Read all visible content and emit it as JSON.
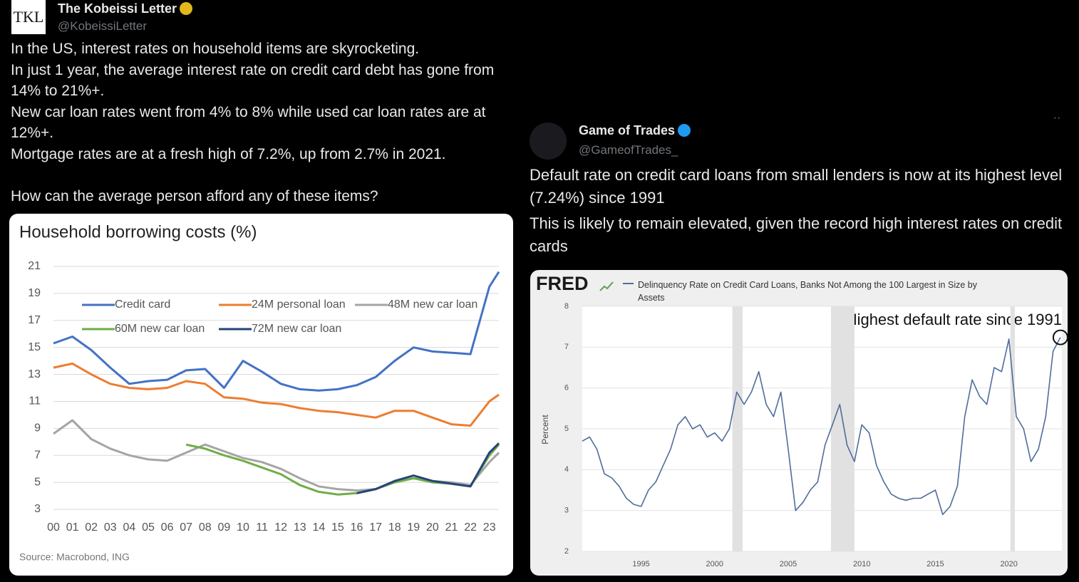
{
  "tweets": [
    {
      "name": "The Kobeissi Letter",
      "handle": "@KobeissiLetter",
      "avatar": "TKL",
      "paragraphs": [
        "In the US, interest rates on household items are skyrocketing.",
        "In just 1 year, the average interest rate on credit card debt has gone from 14% to 21%+.",
        "New car loan rates went from 4% to 8% while used car loan rates are at 12%+.",
        "Mortgage rates are at a fresh high of 7.2%, up from 2.7% in 2021.",
        "How can the average person afford any of these items?"
      ]
    },
    {
      "name": "Game of Trades",
      "handle": "@GameofTrades_",
      "paragraphs": [
        "Default rate on credit card loans from small lenders is now at its highest level (7.24%) since 1991",
        "This is likely to remain elevated, given the record high interest rates on credit cards"
      ]
    }
  ],
  "chart_data": [
    {
      "type": "line",
      "title": "Household borrowing costs (%)",
      "source": "Source: Macrobond, ING",
      "x": [
        0,
        1,
        2,
        3,
        4,
        5,
        6,
        7,
        8,
        9,
        10,
        11,
        12,
        13,
        14,
        15,
        16,
        17,
        18,
        19,
        20,
        21,
        22,
        23,
        23.5
      ],
      "xlim": [
        0,
        23.5
      ],
      "xticks": [
        {
          "value": 0,
          "label": "00"
        },
        {
          "value": 1,
          "label": "01"
        },
        {
          "value": 2,
          "label": "02"
        },
        {
          "value": 3,
          "label": "03"
        },
        {
          "value": 4,
          "label": "04"
        },
        {
          "value": 5,
          "label": "05"
        },
        {
          "value": 6,
          "label": "06"
        },
        {
          "value": 7,
          "label": "07"
        },
        {
          "value": 8,
          "label": "08"
        },
        {
          "value": 9,
          "label": "09"
        },
        {
          "value": 10,
          "label": "10"
        },
        {
          "value": 11,
          "label": "11"
        },
        {
          "value": 12,
          "label": "12"
        },
        {
          "value": 13,
          "label": "13"
        },
        {
          "value": 14,
          "label": "14"
        },
        {
          "value": 15,
          "label": "15"
        },
        {
          "value": 16,
          "label": "16"
        },
        {
          "value": 17,
          "label": "17"
        },
        {
          "value": 18,
          "label": "18"
        },
        {
          "value": 19,
          "label": "19"
        },
        {
          "value": 20,
          "label": "20"
        },
        {
          "value": 21,
          "label": "21"
        },
        {
          "value": 22,
          "label": "22"
        },
        {
          "value": 23,
          "label": "23"
        }
      ],
      "ylim": [
        3,
        21
      ],
      "yticks": [
        3,
        5,
        7,
        9,
        11,
        13,
        15,
        17,
        19,
        21
      ],
      "grid": true,
      "series": [
        {
          "name": "Credit card",
          "color": "#4472c4",
          "values": [
            15.3,
            15.8,
            14.8,
            13.5,
            12.3,
            12.5,
            12.6,
            13.3,
            13.4,
            12.0,
            14.0,
            13.2,
            12.3,
            11.9,
            11.8,
            11.9,
            12.2,
            12.8,
            14.0,
            15.0,
            14.7,
            14.6,
            14.5,
            19.5,
            20.6
          ]
        },
        {
          "name": "24M personal loan",
          "color": "#ed7d31",
          "values": [
            13.5,
            13.8,
            13.0,
            12.3,
            12.0,
            11.9,
            12.0,
            12.5,
            12.3,
            11.3,
            11.2,
            10.9,
            10.8,
            10.5,
            10.3,
            10.2,
            10.0,
            9.8,
            10.3,
            10.3,
            9.8,
            9.3,
            9.2,
            11.0,
            11.5
          ]
        },
        {
          "name": "48M new car loan",
          "color": "#a5a5a5",
          "values": [
            8.6,
            9.6,
            8.2,
            7.5,
            7.0,
            6.7,
            6.6,
            7.2,
            7.8,
            7.3,
            6.8,
            6.5,
            6.0,
            5.3,
            4.7,
            4.5,
            4.4,
            4.5,
            5.0,
            5.3,
            5.1,
            5.0,
            4.8,
            6.5,
            7.2
          ]
        },
        {
          "name": "60M new car loan",
          "color": "#70ad47",
          "values": [
            null,
            null,
            null,
            null,
            null,
            null,
            null,
            7.8,
            7.5,
            7.0,
            6.6,
            6.1,
            5.6,
            4.8,
            4.3,
            4.1,
            4.2,
            4.5,
            5.0,
            5.3,
            5.0,
            4.9,
            4.7,
            7.0,
            7.8
          ]
        },
        {
          "name": "72M new car loan",
          "color": "#264478",
          "values": [
            null,
            null,
            null,
            null,
            null,
            null,
            null,
            null,
            null,
            null,
            null,
            null,
            null,
            null,
            null,
            null,
            4.2,
            4.5,
            5.1,
            5.5,
            5.1,
            4.9,
            4.7,
            7.2,
            7.9
          ]
        }
      ]
    },
    {
      "type": "line",
      "title": "FRED",
      "y_label": "Percent",
      "annotation": "Highest default rate since 1991",
      "x": [
        1991,
        1991.5,
        1992,
        1992.5,
        1993,
        1993.5,
        1994,
        1994.5,
        1995,
        1995.5,
        1996,
        1996.5,
        1997,
        1997.5,
        1998,
        1998.5,
        1999,
        1999.5,
        2000,
        2000.5,
        2001,
        2001.5,
        2002,
        2002.5,
        2003,
        2003.5,
        2004,
        2004.5,
        2005,
        2005.5,
        2006,
        2006.5,
        2007,
        2007.5,
        2008,
        2008.5,
        2009,
        2009.5,
        2010,
        2010.5,
        2011,
        2011.5,
        2012,
        2012.5,
        2013,
        2013.5,
        2014,
        2014.5,
        2015,
        2015.5,
        2016,
        2016.5,
        2017,
        2017.5,
        2018,
        2018.5,
        2019,
        2019.5,
        2020,
        2020.5,
        2021,
        2021.5,
        2022,
        2022.5,
        2023,
        2023.5
      ],
      "xlim": [
        1991,
        2023.6
      ],
      "xticks": [
        1995,
        2000,
        2005,
        2010,
        2015,
        2020
      ],
      "ylim": [
        2,
        8
      ],
      "yticks": [
        2,
        3,
        4,
        5,
        6,
        7,
        8
      ],
      "grid": true,
      "recessions": [
        [
          2001.2,
          2001.9
        ],
        [
          2007.9,
          2009.5
        ],
        [
          2020.1,
          2020.4
        ]
      ],
      "series": [
        {
          "name": "Delinquency Rate on Credit Card Loans, Banks Not Among the 100 Largest in Size by Assets",
          "color": "#4f6d9a",
          "values": [
            4.7,
            4.8,
            4.5,
            3.9,
            3.8,
            3.6,
            3.3,
            3.15,
            3.1,
            3.5,
            3.7,
            4.1,
            4.5,
            5.1,
            5.3,
            5.0,
            5.1,
            4.8,
            4.9,
            4.7,
            5.0,
            5.9,
            5.6,
            5.9,
            6.4,
            5.6,
            5.3,
            5.9,
            4.5,
            3.0,
            3.2,
            3.5,
            3.7,
            4.6,
            5.1,
            5.6,
            4.6,
            4.2,
            5.1,
            4.9,
            4.1,
            3.7,
            3.4,
            3.3,
            3.25,
            3.3,
            3.3,
            3.4,
            3.5,
            2.9,
            3.1,
            3.6,
            5.3,
            6.2,
            5.8,
            5.6,
            6.5,
            6.4,
            7.2,
            5.3,
            5.0,
            4.2,
            4.5,
            5.3,
            6.9,
            7.24
          ]
        }
      ]
    }
  ]
}
